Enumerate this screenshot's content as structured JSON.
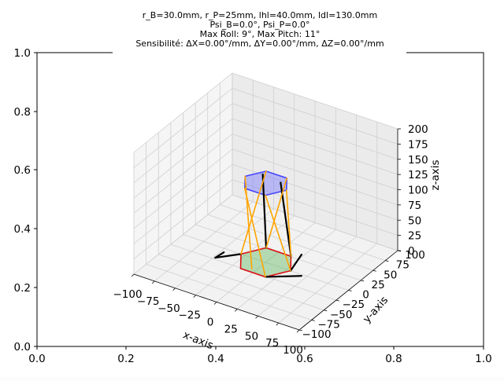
{
  "chart_data": {
    "type": "3d-line",
    "title_lines": [
      "r_B=30.0mm, r_P=25mm, lhl=40.0mm, ldl=130.0mm",
      "Psi_B=0.0°, Psi_P=0.0°",
      "Max Roll: 9°, Max Pitch: 11°",
      "Sensibilité: ΔX=0.00°/mm, ΔY=0.00°/mm, ΔZ=0.00°/mm"
    ],
    "outer_axes": {
      "xlim": [
        0,
        1
      ],
      "ylim": [
        0,
        1
      ],
      "xticks": [
        "0.0",
        "0.2",
        "0.4",
        "0.6",
        "0.8",
        "1.0"
      ],
      "yticks": [
        "0.0",
        "0.2",
        "0.4",
        "0.6",
        "0.8",
        "1.0"
      ]
    },
    "axes3d": {
      "xlabel": "x-axis",
      "ylabel": "y-axis",
      "zlabel": "z-axis",
      "xlim": [
        -100,
        100
      ],
      "ylim": [
        -100,
        100
      ],
      "zlim": [
        0,
        200
      ],
      "xticks": [
        "−100",
        "−75",
        "−50",
        "−25",
        "0",
        "25",
        "50",
        "75",
        "100"
      ],
      "yticks": [
        "−100",
        "−75",
        "−50",
        "−25",
        "0",
        "25",
        "50",
        "75",
        "100"
      ],
      "zticks": [
        "0",
        "25",
        "50",
        "75",
        "100",
        "125",
        "150",
        "175",
        "200"
      ],
      "grid": true
    },
    "series": [
      {
        "role": "base",
        "color": "#dd1111",
        "fill": "#66bb66",
        "points": [
          [
            -30,
            0,
            0
          ],
          [
            -15,
            -26,
            0
          ],
          [
            15,
            -26,
            0
          ],
          [
            30,
            0,
            0
          ],
          [
            15,
            26,
            0
          ],
          [
            -15,
            26,
            0
          ]
        ]
      },
      {
        "role": "platform",
        "color": "#4444ff",
        "fill": "#7777ff",
        "points": [
          [
            -25,
            0,
            130
          ],
          [
            -12.5,
            -21.7,
            130
          ],
          [
            12.5,
            -21.7,
            130
          ],
          [
            25,
            0,
            130
          ],
          [
            12.5,
            21.7,
            130
          ],
          [
            -12.5,
            21.7,
            130
          ]
        ]
      },
      {
        "role": "horns",
        "color": "#000000",
        "segments": [
          [
            [
              -30,
              0,
              0
            ],
            [
              -48,
              -22,
              0
            ]
          ],
          [
            [
              -48,
              -22,
              0
            ],
            [
              -40,
              -18,
              10
            ]
          ],
          [
            [
              15,
              -26,
              0
            ],
            [
              48,
              -8,
              5
            ]
          ],
          [
            [
              30,
              0,
              0
            ],
            [
              48,
              -8,
              40
            ]
          ],
          [
            [
              15,
              26,
              0
            ],
            [
              12,
              10,
              130
            ]
          ],
          [
            [
              -15,
              26,
              0
            ],
            [
              -12,
              14,
              130
            ]
          ]
        ]
      },
      {
        "role": "rods",
        "color": "#ffa500",
        "segments": [
          [
            [
              -25,
              0,
              130
            ],
            [
              -5,
              -20,
              0
            ]
          ],
          [
            [
              -12.5,
              -21.7,
              130
            ],
            [
              15,
              -26,
              0
            ]
          ],
          [
            [
              12.5,
              -21.7,
              130
            ],
            [
              30,
              0,
              0
            ]
          ],
          [
            [
              25,
              0,
              130
            ],
            [
              15,
              26,
              0
            ]
          ],
          [
            [
              12.5,
              21.7,
              130
            ],
            [
              -15,
              26,
              0
            ]
          ],
          [
            [
              -12.5,
              21.7,
              130
            ],
            [
              -30,
              0,
              0
            ]
          ]
        ]
      }
    ]
  }
}
